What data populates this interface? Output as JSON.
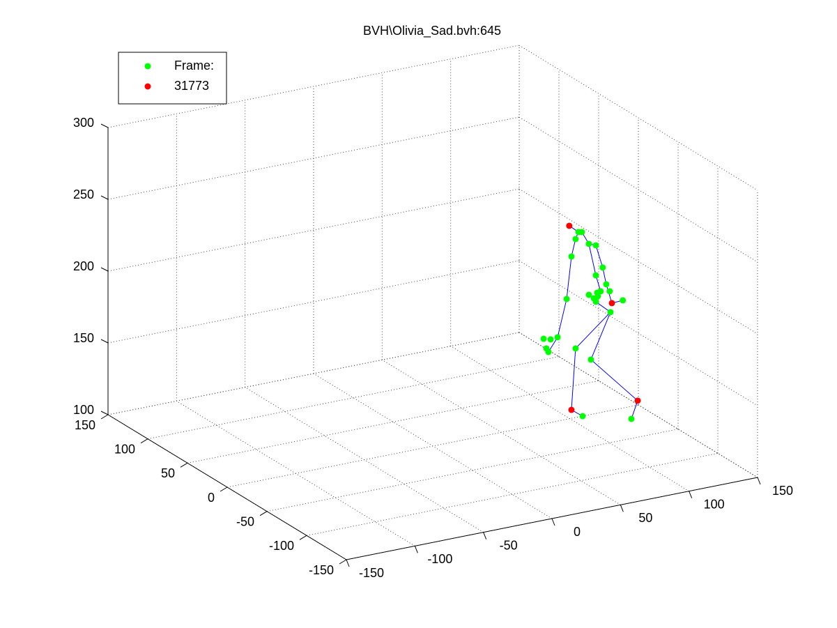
{
  "chart_data": {
    "type": "scatter3d",
    "title": "BVH\\Olivia_Sad.bvh:645",
    "xlim": [
      -150,
      150
    ],
    "xticks": [
      -150,
      -100,
      -50,
      0,
      50,
      100,
      150
    ],
    "ylim": [
      -150,
      150
    ],
    "yticks": [
      -150,
      -100,
      -50,
      0,
      50,
      100,
      150
    ],
    "zlim": [
      100,
      300
    ],
    "zticks": [
      100,
      150,
      200,
      250,
      300
    ],
    "grid": true,
    "legend": "northwest",
    "series": [
      {
        "name": "Frame:",
        "color": "#00ff00",
        "x": [
          113.8,
          116.3,
          111.7,
          121.4,
          126.5,
          108.7,
          131.5,
          134.1,
          126.5,
          136.6,
          127.5,
          130.0,
          121.4,
          125.0,
          128.0,
          126.5,
          146.2,
          137.2,
          105.2,
          98.6,
          88.4,
          93.5,
          90.4,
          91.9,
          111.7,
          122.9,
          91.9,
          127.5
        ],
        "y": [
          13,
          13,
          13,
          13,
          13,
          13,
          13,
          13,
          13,
          13,
          13,
          13,
          13,
          13,
          13,
          13,
          13,
          13,
          13,
          13,
          13,
          13,
          13,
          13,
          13,
          13,
          -30,
          -30
        ],
        "z": [
          223.0,
          222.5,
          218.5,
          213.3,
          211.3,
          206.9,
          194.9,
          182.7,
          190.4,
          177.4,
          178.1,
          178.6,
          177.8,
          174.7,
          175.6,
          172.0,
          169.2,
          162.7,
          178.0,
          152.6,
          153.5,
          152.1,
          146.4,
          143.6,
          142.3,
          132.4,
          113.4,
          104.7
        ]
      },
      {
        "name": "31773",
        "color": "#ff0000",
        "x": [
          107.1,
          138.2,
          108.7,
          132.1
        ],
        "y": [
          13,
          13,
          13,
          -30
        ],
        "z": [
          228.6,
          168.8,
          100.1,
          116.5
        ]
      }
    ],
    "lines": {
      "color": "#0000ff",
      "x": [
        107.1,
        113.8,
        111.7,
        108.7,
        105.2,
        98.6,
        91.9,
        null,
        116.3,
        121.4,
        126.5,
        131.5,
        134.1,
        138.2,
        146.2,
        null,
        121.4,
        126.5,
        130.0,
        126.5,
        null,
        126.5,
        137.2,
        111.7,
        108.7,
        91.9,
        null,
        137.2,
        122.9,
        132.1,
        127.5
      ],
      "y": [
        13,
        13,
        13,
        13,
        13,
        13,
        13,
        null,
        13,
        13,
        13,
        13,
        13,
        13,
        13,
        null,
        13,
        13,
        13,
        13,
        null,
        13,
        13,
        13,
        13,
        -30,
        null,
        13,
        13,
        -30,
        -30
      ],
      "z": [
        228.6,
        223.0,
        218.5,
        206.9,
        178.0,
        152.6,
        143.6,
        null,
        222.5,
        213.3,
        211.3,
        194.9,
        182.7,
        168.8,
        169.2,
        null,
        213.3,
        190.4,
        178.6,
        172.0,
        null,
        172.0,
        162.7,
        142.3,
        100.1,
        113.4,
        null,
        162.7,
        132.4,
        116.5,
        104.7
      ]
    }
  }
}
